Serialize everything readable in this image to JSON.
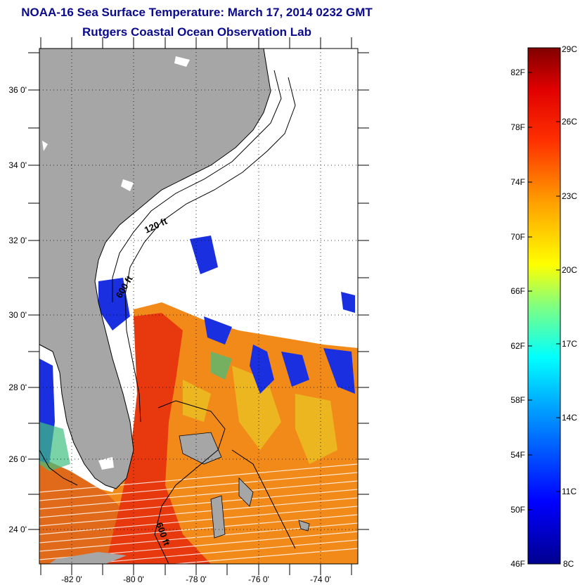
{
  "title": {
    "line1": "NOAA-16 Sea Surface Temperature:  March 17, 2014 0232 GMT",
    "line2": "Rutgers Coastal Ocean Observation Lab"
  },
  "map": {
    "lat_labels": [
      "36 0'",
      "34 0'",
      "32 0'",
      "30 0'",
      "28 0'",
      "26 0'",
      "24 0'"
    ],
    "lon_labels": [
      "-82 0'",
      "-80 0'",
      "-78 0'",
      "-76 0'",
      "-74 0'"
    ],
    "contour_labels": [
      "120 ft",
      "600 ft",
      "600 ft"
    ],
    "colors": {
      "land": "#a6a6a6",
      "no_data": "#ffffff",
      "frame": "#000000"
    }
  },
  "colorbar": {
    "f_labels": [
      "82F",
      "78F",
      "74F",
      "70F",
      "66F",
      "62F",
      "58F",
      "54F",
      "50F",
      "46F"
    ],
    "c_labels": [
      "29C",
      "26C",
      "23C",
      "20C",
      "17C",
      "14C",
      "11C",
      "8C"
    ]
  }
}
